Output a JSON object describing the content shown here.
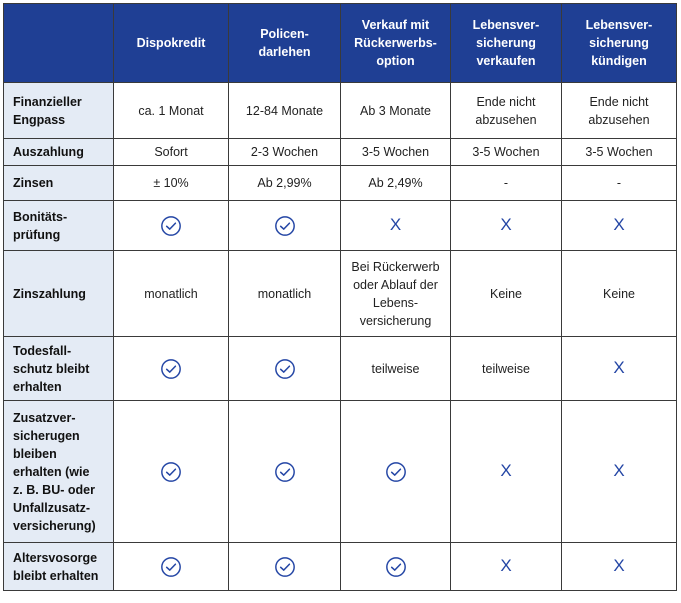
{
  "header": {
    "corner": "",
    "columns": [
      "Dispokredit",
      "Policen-\ndarlehen",
      "Verkauf mit\nRückerwerbs-\noption",
      "Lebensver-\nsicherung\nverkaufen",
      "Lebensver-\nsicherung\nkündigen"
    ]
  },
  "rows": [
    {
      "label": "Finanzieller\nEngpass",
      "cells": [
        "ca. 1 Monat",
        "12-84 Monate",
        "Ab 3 Monate",
        "Ende nicht\nabzusehen",
        "Ende nicht\nabzusehen"
      ]
    },
    {
      "label": "Auszahlung",
      "cells": [
        "Sofort",
        "2-3 Wochen",
        "3-5 Wochen",
        "3-5 Wochen",
        "3-5 Wochen"
      ]
    },
    {
      "label": "Zinsen",
      "cells": [
        "± 10%",
        "Ab 2,99%",
        "Ab 2,49%",
        "-",
        "-"
      ]
    },
    {
      "label": "Bonitäts-\nprüfung",
      "cells": [
        "check",
        "check",
        "X",
        "X",
        "X"
      ]
    },
    {
      "label": "Zinszahlung",
      "cells": [
        "monatlich",
        "monatlich",
        "Bei Rückerwerb\noder Ablauf der\nLebens-\nversicherung",
        "Keine",
        "Keine"
      ]
    },
    {
      "label": "Todesfall-\nschutz bleibt\nerhalten",
      "cells": [
        "check",
        "check",
        "teilweise",
        "teilweise",
        "X"
      ]
    },
    {
      "label": "Zusatzver-\nsicherugen\nbleiben\nerhalten (wie\nz. B. BU- oder\nUnfallzusatz-\nversicherung)",
      "cells": [
        "check",
        "check",
        "check",
        "X",
        "X"
      ]
    },
    {
      "label": "Altersvosorge\nbleibt erhalten",
      "cells": [
        "check",
        "check",
        "check",
        "X",
        "X"
      ]
    }
  ],
  "icons": {
    "check": "check-circle-icon",
    "x": "x-mark-icon"
  },
  "colors": {
    "header_bg": "#1f3f94",
    "label_bg": "#e4ebf5",
    "icon": "#2446a5"
  }
}
